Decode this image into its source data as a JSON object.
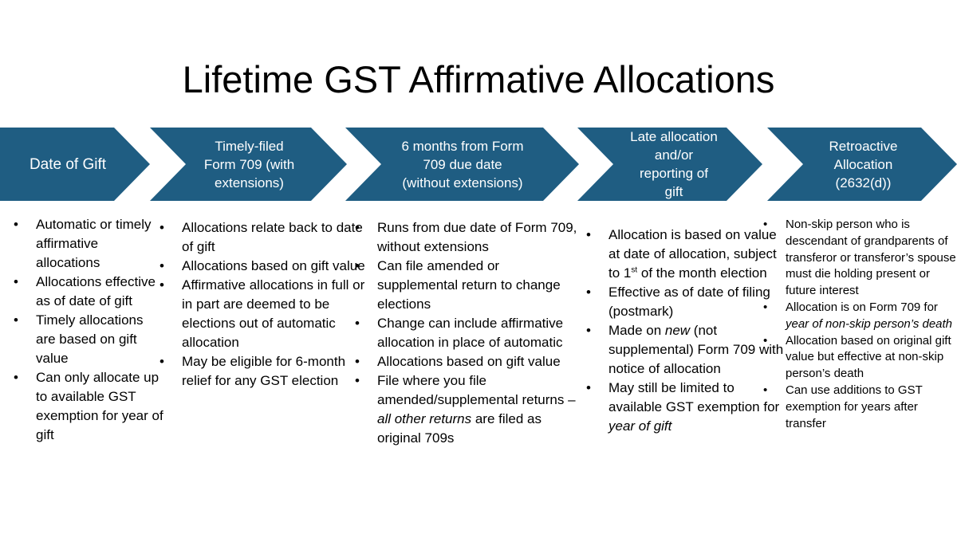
{
  "title": "Lifetime GST Affirmative Allocations",
  "colors": {
    "arrow_fill": "#1F5D82",
    "text": "#000000",
    "arrow_text": "#ffffff"
  },
  "stages": [
    {
      "label_lines": [
        "Date of Gift"
      ]
    },
    {
      "label_lines": [
        "Timely-filed",
        "Form 709 (with",
        "extensions)"
      ]
    },
    {
      "label_lines": [
        "6 months from Form",
        "709 due date",
        "(without extensions)"
      ]
    },
    {
      "label_lines": [
        "Late allocation",
        "and/or",
        "reporting of",
        "gift"
      ]
    },
    {
      "label_lines": [
        "Retroactive",
        "Allocation",
        "(2632(d))"
      ]
    }
  ],
  "columns": [
    {
      "bullets": [
        "Automatic or timely affirmative allocations",
        "Allocations effective as of date of gift",
        "Timely allocations are based on gift value",
        "Can only allocate up to available GST exemption for year of gift"
      ]
    },
    {
      "bullets": [
        "Allocations relate back to date of gift",
        "Allocations based on gift value",
        "Affirmative allocations in full or in part are deemed to be elections out of automatic allocation",
        "May be eligible for 6-month relief for any GST election"
      ]
    },
    {
      "bullets": [
        "Runs from due date of Form 709, without extensions",
        "Can file amended or supplemental return to change elections",
        "Change can include affirmative allocation in place of automatic",
        "Allocations based on gift value",
        {
          "text": "File where you file amended/supplemental returns – ",
          "italic": "all other returns",
          "after": " are filed as original 709s"
        }
      ]
    },
    {
      "bullets": [
        {
          "text": "Allocation is based on value at date of allocation, subject to 1",
          "sup": "st",
          "after": " of the month election"
        },
        "Effective as of date of filing (postmark)",
        {
          "text": "Made on ",
          "italic": "new",
          "after": " (not supplemental) Form 709 with notice of allocation"
        },
        {
          "text": "May still be limited to available GST exemption for ",
          "italic": "year of gift",
          "after": ""
        }
      ]
    },
    {
      "bullets": [
        "Non-skip person who is descendant of grandparents of transferor or transferor’s spouse must die holding present or future interest",
        {
          "text": "Allocation is on Form 709 for ",
          "italic": "year of non-skip person’s death",
          "after": ""
        },
        "Allocation based on original gift value but effective at non-skip person’s death",
        "Can use additions to GST exemption for years after transfer"
      ]
    }
  ]
}
